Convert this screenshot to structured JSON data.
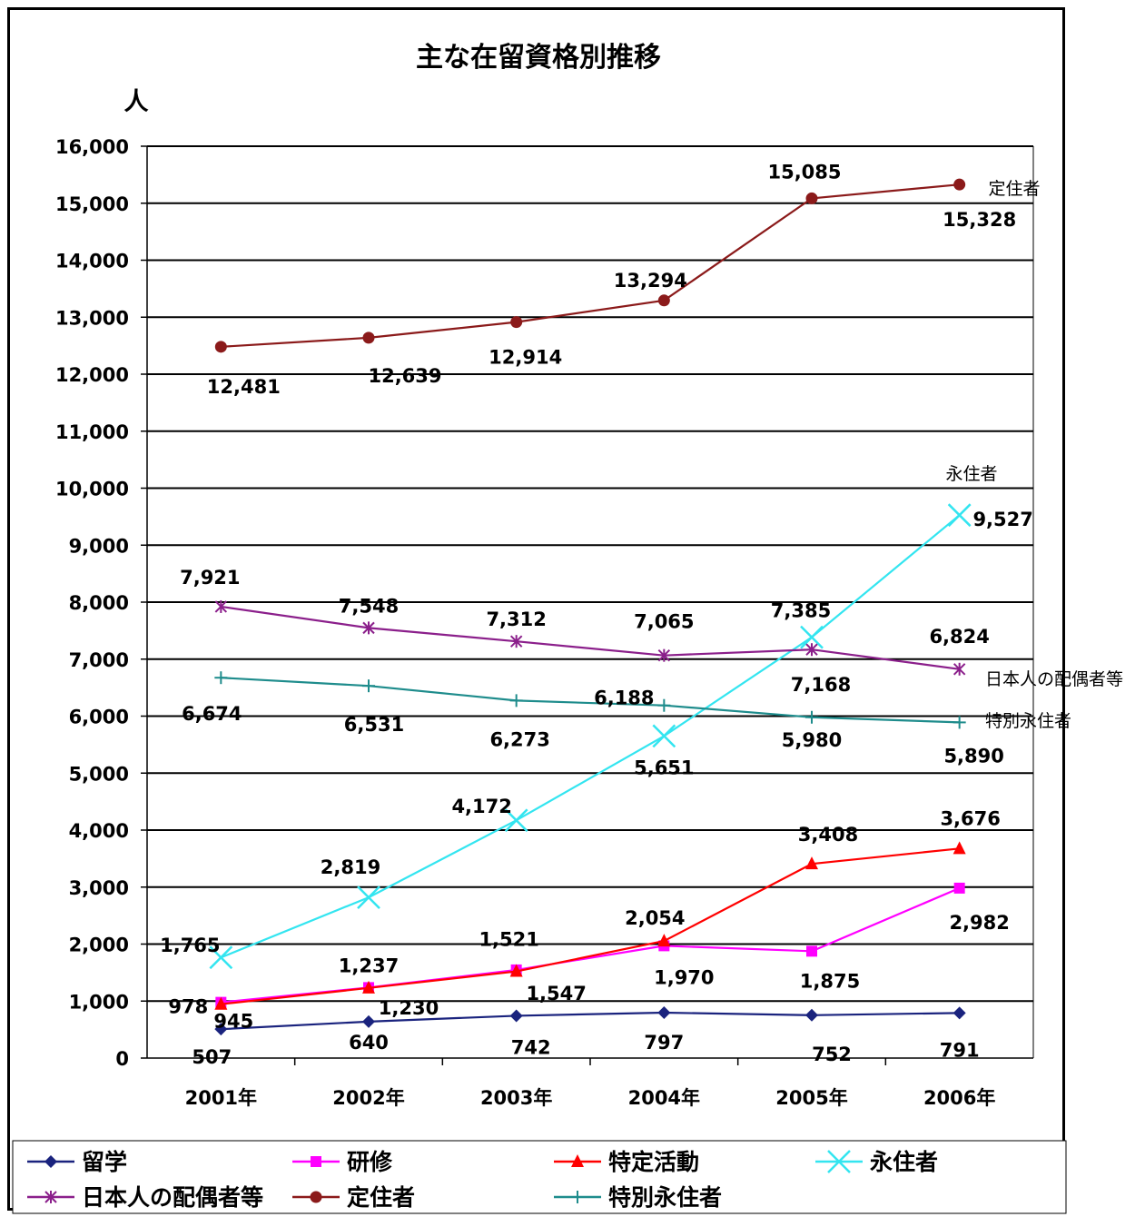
{
  "chart_data": {
    "type": "line",
    "title": "主な在留資格別推移",
    "ylabel": "人",
    "categories": [
      "2001年",
      "2002年",
      "2003年",
      "2004年",
      "2005年",
      "2006年"
    ],
    "ylim": [
      0,
      16000
    ],
    "yticks": [
      "0",
      "1,000",
      "2,000",
      "3,000",
      "4,000",
      "5,000",
      "6,000",
      "7,000",
      "8,000",
      "9,000",
      "10,000",
      "11,000",
      "12,000",
      "13,000",
      "14,000",
      "15,000",
      "16,000"
    ],
    "grid": true,
    "legend_position": "bottom",
    "series": [
      {
        "name": "留学",
        "color": "#1a237e",
        "marker": "diamond",
        "values": [
          507,
          640,
          742,
          797,
          752,
          791
        ],
        "labels": [
          "507",
          "640",
          "742",
          "797",
          "752",
          "791"
        ]
      },
      {
        "name": "研修",
        "color": "#ff00ff",
        "marker": "square",
        "values": [
          978,
          1237,
          1547,
          1970,
          1875,
          2982
        ],
        "labels": [
          "978",
          "1,237",
          "1,547",
          "1,970",
          "1,875",
          "2,982"
        ]
      },
      {
        "name": "特定活動",
        "color": "#ff0000",
        "marker": "triangle",
        "values": [
          945,
          1230,
          1521,
          2054,
          3408,
          3676
        ],
        "labels": [
          "945",
          "1,230",
          "1,521",
          "2,054",
          "3,408",
          "3,676"
        ]
      },
      {
        "name": "永住者",
        "color": "#33e5f0",
        "marker": "x",
        "values": [
          1765,
          2819,
          4172,
          5651,
          7385,
          9527
        ],
        "labels": [
          "1,765",
          "2,819",
          "4,172",
          "5,651",
          "7,385",
          "9,527"
        ],
        "end_label": "永住者"
      },
      {
        "name": "日本人の配偶者等",
        "color": "#8b1f8b",
        "marker": "asterisk",
        "values": [
          7921,
          7548,
          7312,
          7065,
          7168,
          6824
        ],
        "labels": [
          "7,921",
          "7,548",
          "7,312",
          "7,065",
          "7,168",
          "6,824"
        ],
        "end_label": "日本人の配偶者等"
      },
      {
        "name": "定住者",
        "color": "#8b1a1a",
        "marker": "circle",
        "values": [
          12481,
          12639,
          12914,
          13294,
          15085,
          15328
        ],
        "labels": [
          "12,481",
          "12,639",
          "12,914",
          "13,294",
          "15,085",
          "15,328"
        ],
        "end_label": "定住者"
      },
      {
        "name": "特別永住者",
        "color": "#1e8c8c",
        "marker": "plus",
        "values": [
          6674,
          6531,
          6273,
          6188,
          5980,
          5890
        ],
        "labels": [
          "6,674",
          "6,531",
          "6,273",
          "6,188",
          "5,980",
          "5,890"
        ],
        "end_label": "特別永住者"
      }
    ]
  }
}
